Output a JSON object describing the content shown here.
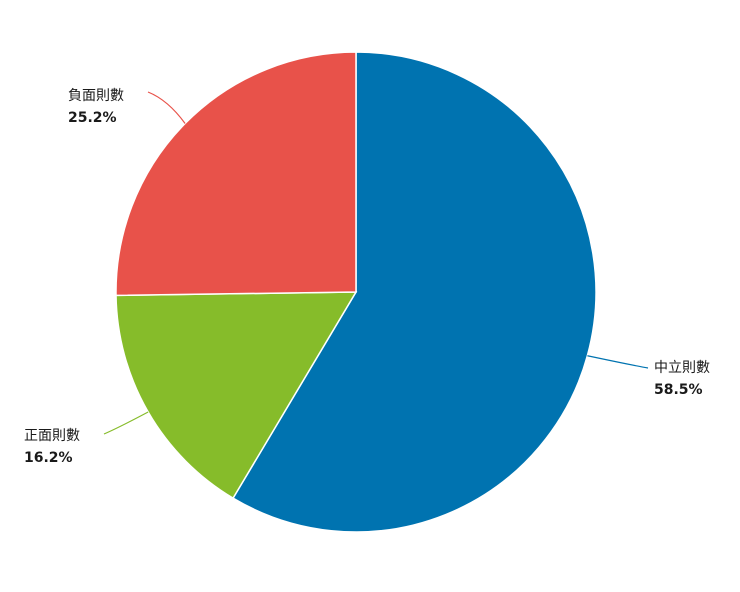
{
  "chart_data": {
    "type": "pie",
    "start_angle_deg": 0,
    "direction": "clockwise",
    "slices": [
      {
        "name": "中立則數",
        "value": 58.5,
        "label": "58.5%",
        "color": "#0073b0"
      },
      {
        "name": "正面則數",
        "value": 16.2,
        "label": "16.2%",
        "color": "#86bc2a"
      },
      {
        "name": "負面則數",
        "value": 25.2,
        "label": "25.2%",
        "color": "#e8524a"
      }
    ]
  }
}
